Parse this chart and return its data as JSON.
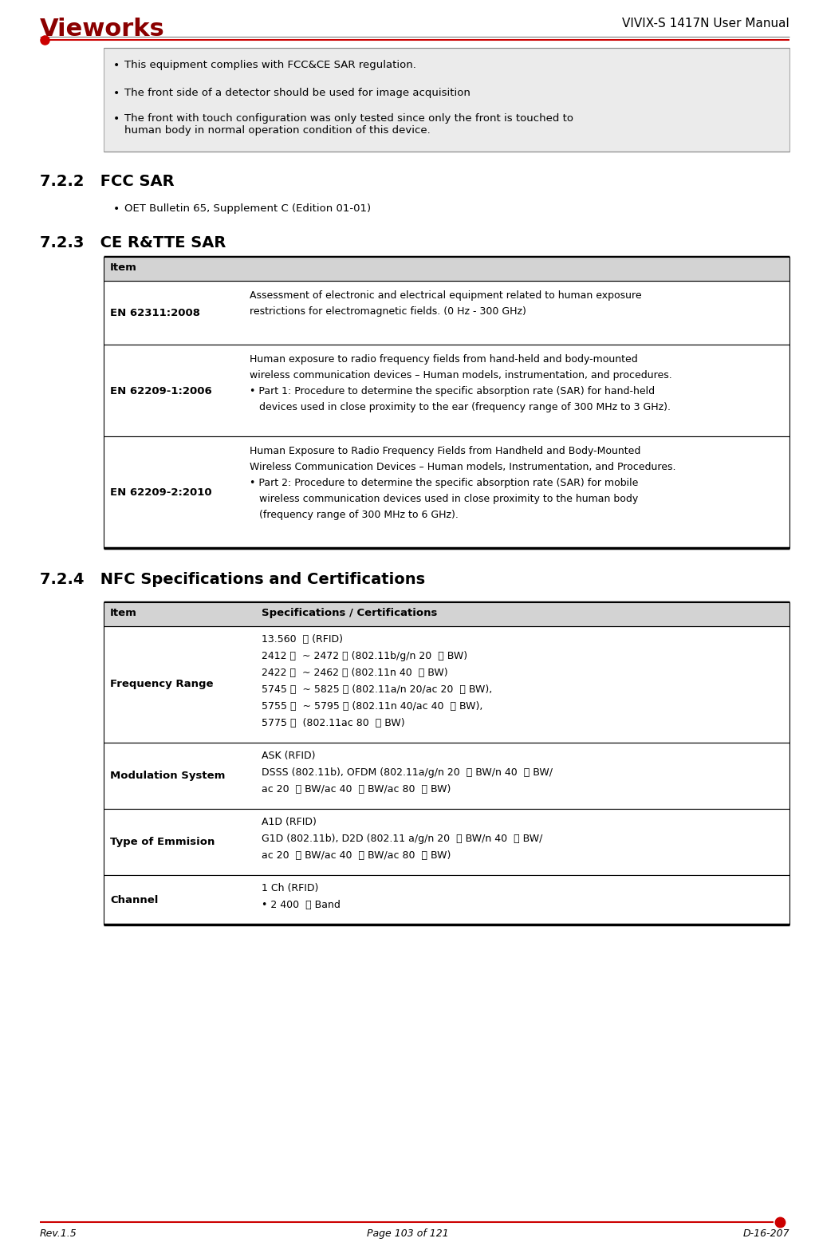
{
  "page_title_right": "VIVIX-S 1417N User Manual",
  "logo_text": "Vieworks",
  "footer_left": "Rev.1.5",
  "footer_center": "Page 103 of 121",
  "footer_right": "D-16-207",
  "header_line_color": "#cc0000",
  "bullet_items_top": [
    "This equipment complies with FCC&CE SAR regulation.",
    "The front side of a detector should be used for image acquisition",
    "The front with touch configuration was only tested since only the front is touched to\nhuman body in normal operation condition of this device."
  ],
  "section_722_title": "7.2.2   FCC SAR",
  "section_722_bullet": "OET Bulletin 65, Supplement C (Edition 01-01)",
  "section_723_title": "7.2.3   CE R&TTE SAR",
  "table_723_header": "Item",
  "table_723_rows": [
    {
      "item": "EN 62311:2008",
      "desc_lines": [
        "Assessment of electronic and electrical equipment related to human exposure",
        "restrictions for electromagnetic fields. (0 Hz - 300 GHz)"
      ]
    },
    {
      "item": "EN 62209-1:2006",
      "desc_lines": [
        "Human exposure to radio frequency fields from hand-held and body-mounted",
        "wireless communication devices – Human models, instrumentation, and procedures.",
        "• Part 1: Procedure to determine the specific absorption rate (SAR) for hand-held",
        "   devices used in close proximity to the ear (frequency range of 300 MHz to 3 GHz)."
      ]
    },
    {
      "item": "EN 62209-2:2010",
      "desc_lines": [
        "Human Exposure to Radio Frequency Fields from Handheld and Body-Mounted",
        "Wireless Communication Devices – Human models, Instrumentation, and Procedures.",
        "• Part 2: Procedure to determine the specific absorption rate (SAR) for mobile",
        "   wireless communication devices used in close proximity to the human body",
        "   (frequency range of 300 MHz to 6 GHz)."
      ]
    }
  ],
  "section_724_title": "7.2.4   NFC Specifications and Certifications",
  "table_724_header_item": "Item",
  "table_724_header_spec": "Specifications / Certifications",
  "table_724_rows": [
    {
      "item": "Frequency Range",
      "desc_lines": [
        "13.560  ㎜ (RFID)",
        "2412 ㎜  ~ 2472 ㎜ (802.11b/g/n 20  ㎜ BW)",
        "2422 ㎜  ~ 2462 ㎜ (802.11n 40  ㎜ BW)",
        "5745 ㎜  ~ 5825 ㎜ (802.11a/n 20/ac 20  ㎜ BW),",
        "5755 ㎜  ~ 5795 ㎜ (802.11n 40/ac 40  ㎜ BW),",
        "5775 ㎜  (802.11ac 80  ㎜ BW)"
      ]
    },
    {
      "item": "Modulation System",
      "desc_lines": [
        "ASK (RFID)",
        "DSSS (802.11b), OFDM (802.11a/g/n 20  ㎜ BW/n 40  ㎜ BW/",
        "ac 20  ㎜ BW/ac 40  ㎜ BW/ac 80  ㎜ BW)"
      ]
    },
    {
      "item": "Type of Emmision",
      "desc_lines": [
        "A1D (RFID)",
        "G1D (802.11b), D2D (802.11 a/g/n 20  ㎜ BW/n 40  ㎜ BW/",
        "ac 20  ㎜ BW/ac 40  ㎜ BW/ac 80  ㎜ BW)"
      ]
    },
    {
      "item": "Channel",
      "desc_lines": [
        "1 Ch (RFID)",
        "• 2 400  ㎜ Band"
      ]
    }
  ],
  "bg_color": "#ffffff",
  "table_header_bg": "#d3d3d3",
  "table_row_bg": "#ffffff",
  "table_border_color": "#000000",
  "top_box_bg": "#ebebeb"
}
